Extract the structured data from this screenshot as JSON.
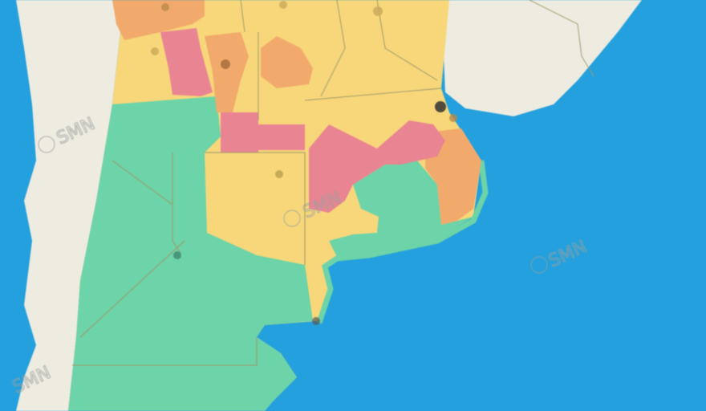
{
  "map": {
    "watermark_text": "SMN",
    "watermark_icon": "copyright-circle-icon",
    "legend_colors": {
      "ocean": "#23a0dd",
      "land": "#eeebe0",
      "green": "#6dd3a8",
      "yellow": "#f7d77a",
      "orange": "#f2aa6c",
      "red": "#e98592"
    },
    "marker_icon": "station-marker-icon"
  }
}
